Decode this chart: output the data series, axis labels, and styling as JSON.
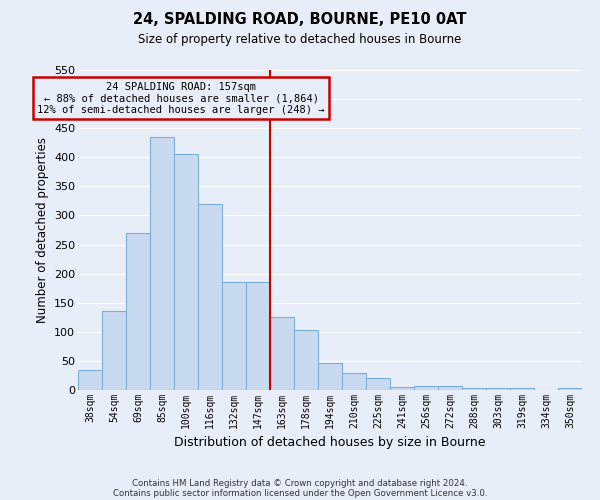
{
  "title": "24, SPALDING ROAD, BOURNE, PE10 0AT",
  "subtitle": "Size of property relative to detached houses in Bourne",
  "xlabel": "Distribution of detached houses by size in Bourne",
  "ylabel": "Number of detached properties",
  "bar_labels": [
    "38sqm",
    "54sqm",
    "69sqm",
    "85sqm",
    "100sqm",
    "116sqm",
    "132sqm",
    "147sqm",
    "163sqm",
    "178sqm",
    "194sqm",
    "210sqm",
    "225sqm",
    "241sqm",
    "256sqm",
    "272sqm",
    "288sqm",
    "303sqm",
    "319sqm",
    "334sqm",
    "350sqm"
  ],
  "bar_values": [
    35,
    135,
    270,
    435,
    405,
    320,
    185,
    185,
    125,
    103,
    46,
    30,
    20,
    5,
    7,
    7,
    4,
    4,
    4,
    0,
    4
  ],
  "bar_color": "#c9d9f0",
  "bar_edge_color": "#7bafd4",
  "ylim": [
    0,
    550
  ],
  "yticks": [
    0,
    50,
    100,
    150,
    200,
    250,
    300,
    350,
    400,
    450,
    500,
    550
  ],
  "vline_index": 8,
  "vline_color": "#cc0000",
  "annotation_title": "24 SPALDING ROAD: 157sqm",
  "annotation_line1": "← 88% of detached houses are smaller (1,864)",
  "annotation_line2": "12% of semi-detached houses are larger (248) →",
  "annotation_box_color": "#cc0000",
  "footnote1": "Contains HM Land Registry data © Crown copyright and database right 2024.",
  "footnote2": "Contains public sector information licensed under the Open Government Licence v3.0.",
  "background_color": "#e8eef8",
  "grid_color": "#ffffff"
}
